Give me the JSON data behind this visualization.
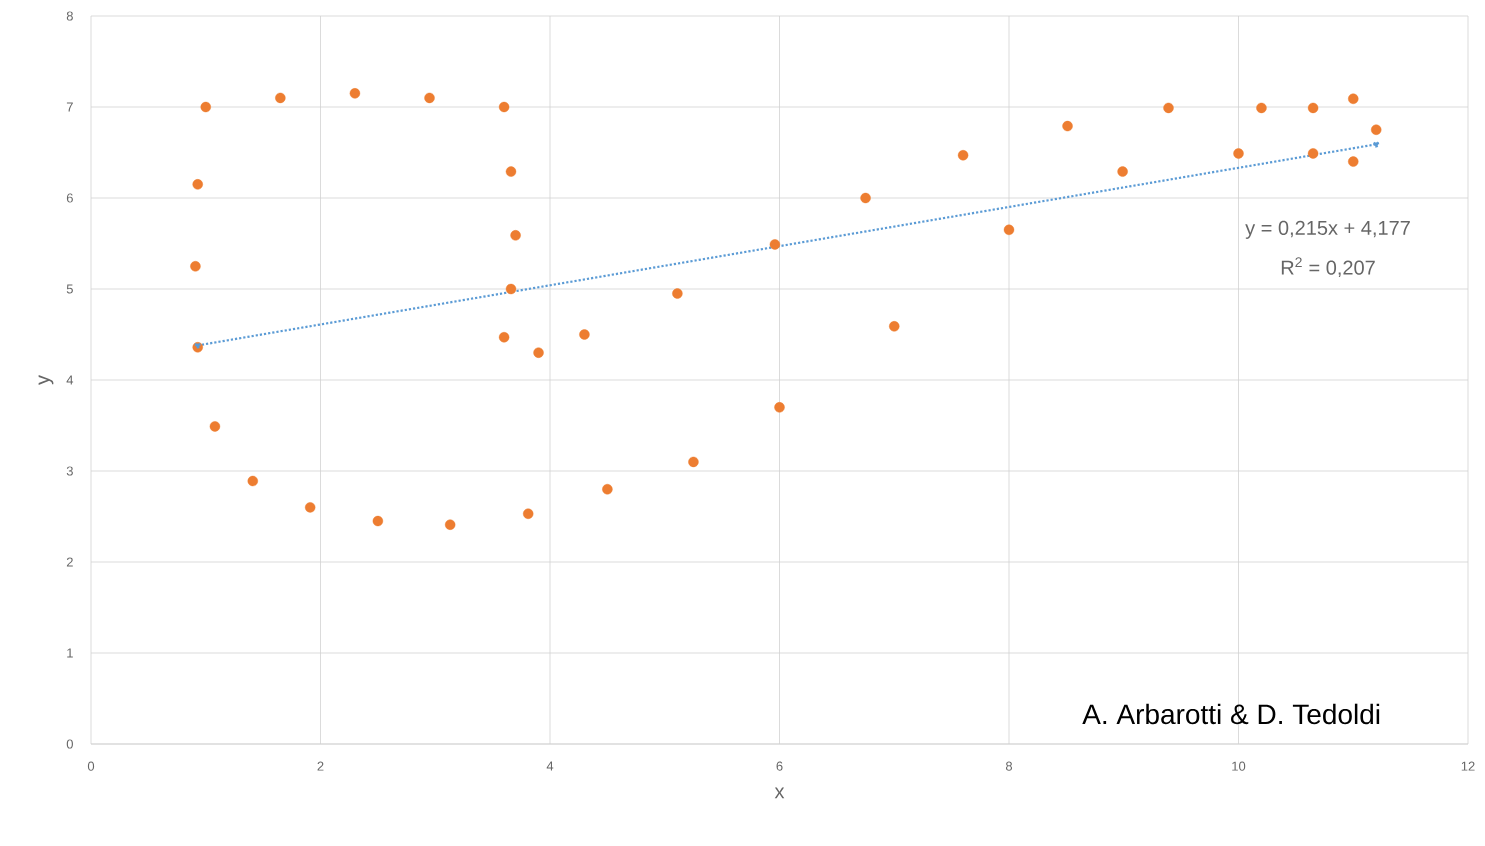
{
  "chart_data": {
    "type": "scatter",
    "xlabel": "x",
    "ylabel": "y",
    "xlim": [
      0,
      12
    ],
    "ylim": [
      0,
      8
    ],
    "xticks": [
      0,
      2,
      4,
      6,
      8,
      10,
      12
    ],
    "yticks": [
      0,
      1,
      2,
      3,
      4,
      5,
      6,
      7,
      8
    ],
    "grid": true,
    "marker": "circle",
    "series": [
      {
        "color": "#ed7d31",
        "x": [
          1.0,
          1.65,
          2.3,
          2.95,
          3.6,
          0.93,
          0.91,
          0.93,
          1.08,
          1.41,
          1.91,
          2.5,
          3.13,
          3.81,
          4.5,
          5.25,
          6.0,
          3.66,
          3.7,
          3.66,
          3.6,
          3.9,
          4.3,
          5.11,
          5.96,
          6.75,
          7.0,
          7.6,
          8.0,
          8.51,
          8.99,
          9.39,
          10.0,
          10.2,
          10.65,
          10.65,
          11.0,
          11.0,
          11.2
        ],
        "values": [
          7.0,
          7.1,
          7.15,
          7.1,
          7.0,
          6.15,
          5.25,
          4.36,
          3.49,
          2.89,
          2.6,
          2.45,
          2.41,
          2.53,
          2.8,
          3.1,
          3.7,
          6.29,
          5.59,
          5.0,
          4.47,
          4.3,
          4.5,
          4.95,
          5.49,
          6.0,
          4.59,
          6.47,
          5.65,
          6.79,
          6.29,
          6.99,
          6.49,
          6.99,
          6.99,
          6.49,
          7.09,
          6.4,
          6.75
        ]
      },
      {
        "type": "line",
        "color": "#5b9bd5",
        "line_style": "dotted",
        "x": [
          0.93,
          11.2
        ],
        "values": [
          4.38,
          6.59
        ]
      }
    ],
    "annotations": [
      "y = 0,215x + 4,177",
      "R$^{2}$ = 0,207",
      "A. Arbarotti  &  D. Tedoldi"
    ]
  }
}
